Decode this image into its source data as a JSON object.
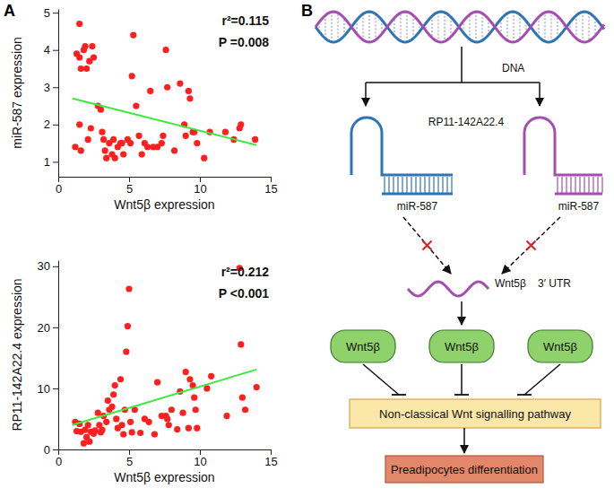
{
  "panel_labels": [
    "A",
    "B"
  ],
  "chart_data": [
    {
      "type": "scatter",
      "x": [
        1.5,
        1.3,
        1.5,
        1.8,
        1.9,
        1.6,
        2.2,
        2.4,
        2.5,
        2.0,
        1.2,
        1.6,
        1.5,
        2.1,
        2.3,
        2.8,
        3.0,
        3.1,
        3.2,
        3.3,
        3.4,
        3.6,
        3.8,
        3.9,
        4.0,
        4.2,
        4.4,
        4.5,
        4.6,
        4.9,
        5.1,
        5.3,
        5.2,
        5.5,
        5.7,
        5.9,
        6.1,
        6.3,
        6.5,
        6.7,
        7.0,
        7.3,
        7.6,
        7.7,
        7.4,
        8.2,
        8.6,
        8.9,
        9.0,
        9.2,
        9.3,
        9.5,
        9.8,
        9.6,
        10.3,
        10.7,
        11.8,
        12.4,
        12.8,
        12.9,
        13.9
      ],
      "values": [
        4.7,
        3.9,
        3.8,
        4.0,
        4.1,
        3.5,
        3.7,
        4.1,
        3.8,
        3.5,
        1.4,
        1.3,
        2.0,
        1.6,
        1.9,
        2.5,
        2.4,
        1.8,
        1.6,
        1.3,
        1.1,
        1.5,
        1.2,
        1.6,
        1.1,
        1.4,
        1.5,
        1.5,
        1.2,
        1.6,
        1.5,
        4.4,
        3.3,
        2.5,
        1.7,
        1.2,
        1.5,
        1.4,
        2.9,
        1.4,
        1.4,
        1.5,
        4.0,
        3.0,
        1.7,
        1.3,
        3.1,
        2.0,
        1.7,
        2.9,
        2.7,
        1.8,
        1.5,
        1.8,
        1.1,
        1.8,
        1.8,
        1.6,
        1.9,
        2.0,
        1.6
      ],
      "color": "#ff1f1f",
      "marker": "circle",
      "x_label": "Wnt5β expression",
      "y_label": "miR-587 expression",
      "xlim": [
        0,
        15
      ],
      "xticks": [
        0,
        5,
        10,
        15
      ],
      "ylim": [
        0.6,
        5.1
      ],
      "yticks": [
        1,
        2,
        3,
        4,
        5
      ],
      "annotations": [
        "r²=0.115",
        "P =0.008"
      ],
      "fit_line": {
        "x": [
          1,
          14
        ],
        "values": [
          2.7,
          1.45
        ],
        "color": "#3ee83e"
      }
    },
    {
      "type": "scatter",
      "x": [
        1.2,
        1.3,
        1.5,
        1.6,
        1.8,
        1.9,
        2.0,
        2.1,
        2.2,
        2.3,
        2.5,
        2.6,
        2.8,
        2.9,
        3.0,
        3.1,
        3.2,
        3.4,
        3.5,
        3.6,
        3.8,
        3.9,
        4.0,
        4.1,
        4.2,
        4.4,
        4.5,
        4.6,
        4.7,
        4.8,
        4.9,
        5.0,
        5.1,
        5.2,
        5.4,
        5.8,
        6.1,
        6.4,
        6.8,
        7.0,
        7.3,
        7.6,
        7.7,
        7.8,
        8.0,
        8.4,
        8.6,
        8.8,
        9.0,
        9.2,
        9.3,
        9.5,
        9.6,
        9.7,
        9.8,
        10.5,
        10.8,
        11.9,
        12.8,
        12.9,
        13.0,
        13.2,
        14.0
      ],
      "values": [
        4.5,
        3.0,
        4.2,
        2.9,
        1.0,
        3.2,
        2.0,
        4.0,
        1.3,
        2.9,
        2.6,
        3.1,
        6.0,
        4.0,
        2.8,
        3.2,
        5.5,
        4.5,
        8.0,
        6.5,
        7.0,
        9.0,
        10.5,
        5.0,
        3.5,
        11.5,
        4.0,
        2.5,
        6.5,
        16.0,
        20.2,
        26.3,
        4.5,
        2.8,
        6.5,
        2.7,
        5.0,
        4.5,
        2.5,
        11.0,
        5.5,
        5.5,
        5.0,
        4.0,
        6.5,
        3.3,
        9.5,
        6.0,
        12.7,
        3.5,
        11.5,
        10.5,
        8.5,
        6.5,
        3.5,
        10.0,
        12.0,
        5.5,
        29.7,
        17.2,
        8.5,
        6.5,
        10.2
      ],
      "color": "#ff1f1f",
      "marker": "circle",
      "x_label": "Wnt5β expression",
      "y_label": "RP11-142A22.4 expression",
      "xlim": [
        0,
        15
      ],
      "xticks": [
        0,
        5,
        10,
        15
      ],
      "ylim": [
        0,
        31
      ],
      "yticks": [
        0,
        10,
        20,
        30
      ],
      "annotations": [
        "r²=0.212",
        "P <0.001"
      ],
      "fit_line": {
        "x": [
          1,
          14
        ],
        "values": [
          4.0,
          13.1
        ],
        "color": "#3ee83e"
      }
    }
  ],
  "diagram": {
    "dna_label": "DNA",
    "lncrna_label": "RP11-142A22.4",
    "mirna_labels": [
      "miR-587",
      "miR-587"
    ],
    "target_label": "Wnt5β",
    "utr_label": "3′ UTR",
    "protein_labels": [
      "Wnt5β",
      "Wnt5β",
      "Wnt5β"
    ],
    "pathway_label": "Non-classical Wnt signalling pathway",
    "outcome_label": "Preadipocytes differentiation"
  }
}
